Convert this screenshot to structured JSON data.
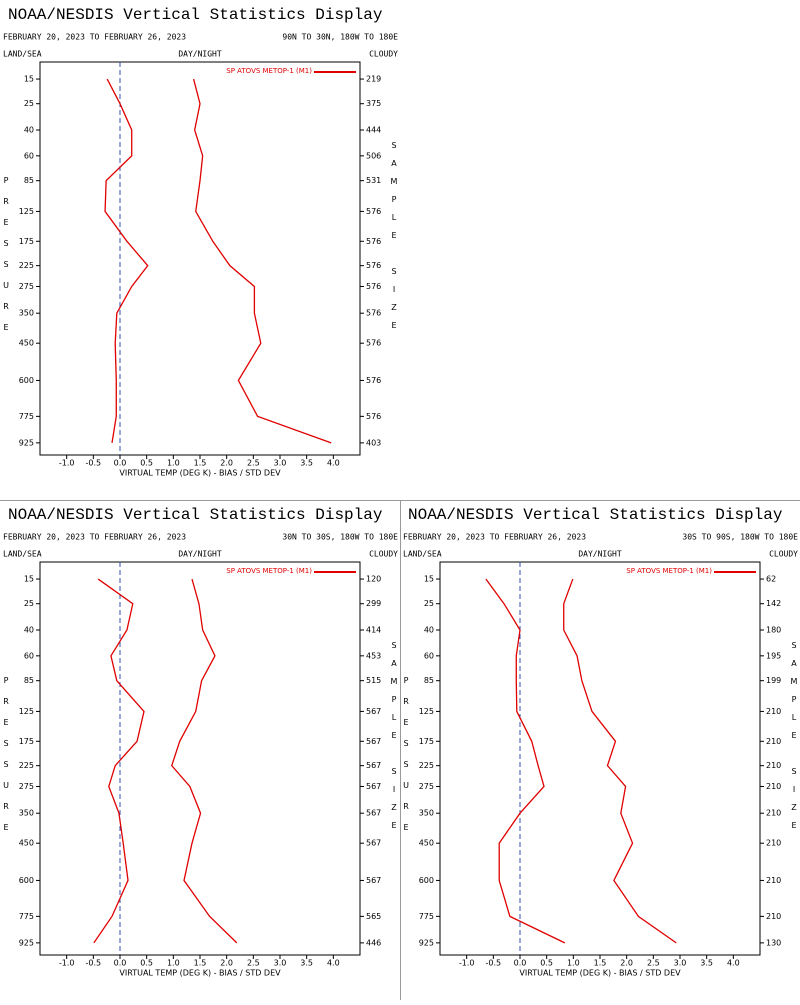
{
  "chart_data": [
    {
      "type": "line",
      "title": "NOAA/NESDIS Vertical Statistics Display",
      "date_range": "FEBRUARY 20, 2023 TO FEBRUARY 26, 2023",
      "region": "90N TO 30N, 180W TO 180E",
      "left_header": "LAND/SEA",
      "center_header": "DAY/NIGHT",
      "right_header": "CLOUDY",
      "ylabel": "PRESSURE",
      "y2label": "SAMPLE SIZE",
      "xlabel": "VIRTUAL TEMP (DEG K) - BIAS / STD DEV",
      "y": [
        15,
        25,
        40,
        60,
        85,
        125,
        175,
        225,
        275,
        350,
        450,
        600,
        775,
        925
      ],
      "ylim": [
        10,
        1000
      ],
      "sample_size": [
        219,
        375,
        444,
        506,
        531,
        576,
        576,
        576,
        576,
        576,
        576,
        576,
        576,
        403
      ],
      "xlim": [
        -1.5,
        4.5
      ],
      "xticks": [
        {
          "value": -1,
          "label": "-1.0"
        },
        -0.5,
        {
          "value": 0,
          "label": "0.0"
        },
        0.5,
        {
          "value": 1,
          "label": "1.0"
        },
        1.5,
        {
          "value": 2,
          "label": "2.0"
        },
        2.5,
        {
          "value": 3,
          "label": "3.0"
        },
        3.5,
        {
          "value": 4,
          "label": "4.0"
        }
      ],
      "series": [
        {
          "name": "SP ATOVS METOP-1 (M1)",
          "color": "#e00000",
          "values": [
            -0.24,
            0.0,
            0.22,
            0.22,
            -0.26,
            -0.28,
            0.13,
            0.52,
            0.22,
            -0.06,
            -0.09,
            -0.07,
            -0.07,
            -0.15
          ],
          "std_dev": [
            1.38,
            1.5,
            1.4,
            1.55,
            1.5,
            1.42,
            1.74,
            2.06,
            2.52,
            2.52,
            2.64,
            2.22,
            2.58,
            3.96
          ]
        }
      ]
    },
    {
      "type": "line",
      "title": "NOAA/NESDIS Vertical Statistics Display",
      "date_range": "FEBRUARY 20, 2023 TO FEBRUARY 26, 2023",
      "region": "30N TO 30S, 180W TO 180E",
      "left_header": "LAND/SEA",
      "center_header": "DAY/NIGHT",
      "right_header": "CLOUDY",
      "ylabel": "PRESSURE",
      "y2label": "SAMPLE SIZE",
      "xlabel": "VIRTUAL TEMP (DEG K) - BIAS / STD DEV",
      "y": [
        15,
        25,
        40,
        60,
        85,
        125,
        175,
        225,
        275,
        350,
        450,
        600,
        775,
        925
      ],
      "ylim": [
        10,
        1000
      ],
      "sample_size": [
        120,
        299,
        414,
        453,
        515,
        567,
        567,
        567,
        567,
        567,
        567,
        567,
        565,
        446
      ],
      "xlim": [
        -1.5,
        4.5
      ],
      "xticks": [
        {
          "value": -1,
          "label": "-1.0"
        },
        -0.5,
        {
          "value": 0,
          "label": "0.0"
        },
        0.5,
        {
          "value": 1,
          "label": "1.0"
        },
        1.5,
        {
          "value": 2,
          "label": "2.0"
        },
        2.5,
        {
          "value": 3,
          "label": "3.0"
        },
        3.5,
        {
          "value": 4,
          "label": "4.0"
        }
      ],
      "series": [
        {
          "name": "SP ATOVS METOP-1 (M1)",
          "color": "#e00000",
          "values": [
            -0.41,
            0.24,
            0.13,
            -0.17,
            -0.06,
            0.45,
            0.32,
            -0.09,
            -0.21,
            -0.02,
            0.06,
            0.15,
            -0.15,
            -0.49
          ],
          "std_dev": [
            1.35,
            1.48,
            1.55,
            1.78,
            1.53,
            1.42,
            1.12,
            0.97,
            1.31,
            1.51,
            1.35,
            1.2,
            1.68,
            2.19
          ]
        }
      ]
    },
    {
      "type": "line",
      "title": "NOAA/NESDIS Vertical Statistics Display",
      "date_range": "FEBRUARY 20, 2023 TO FEBRUARY 26, 2023",
      "region": "30S TO 90S, 180W TO 180E",
      "left_header": "LAND/SEA",
      "center_header": "DAY/NIGHT",
      "right_header": "CLOUDY",
      "ylabel": "PRESSURE",
      "y2label": "SAMPLE SIZE",
      "xlabel": "VIRTUAL TEMP (DEG K) - BIAS / STD DEV",
      "y": [
        15,
        25,
        40,
        60,
        85,
        125,
        175,
        225,
        275,
        350,
        450,
        600,
        775,
        925
      ],
      "ylim": [
        10,
        1000
      ],
      "sample_size": [
        62,
        142,
        180,
        195,
        199,
        210,
        210,
        210,
        210,
        210,
        210,
        210,
        210,
        130
      ],
      "xlim": [
        -1.5,
        4.5
      ],
      "xticks": [
        {
          "value": -1,
          "label": "-1.0"
        },
        -0.5,
        {
          "value": 0,
          "label": "0.0"
        },
        0.5,
        {
          "value": 1,
          "label": "1.0"
        },
        1.5,
        {
          "value": 2,
          "label": "2.0"
        },
        2.5,
        {
          "value": 3,
          "label": "3.0"
        },
        3.5,
        {
          "value": 4,
          "label": "4.0"
        }
      ],
      "series": [
        {
          "name": "SP ATOVS METOP-1 (M1)",
          "color": "#e00000",
          "values": [
            -0.64,
            -0.3,
            0.0,
            -0.07,
            -0.07,
            -0.06,
            0.22,
            0.34,
            0.45,
            0.0,
            -0.39,
            -0.39,
            -0.19,
            0.84
          ],
          "std_dev": [
            0.99,
            0.82,
            0.82,
            1.07,
            1.16,
            1.35,
            1.79,
            1.64,
            1.98,
            1.89,
            2.11,
            1.76,
            2.22,
            2.93
          ]
        }
      ]
    }
  ]
}
